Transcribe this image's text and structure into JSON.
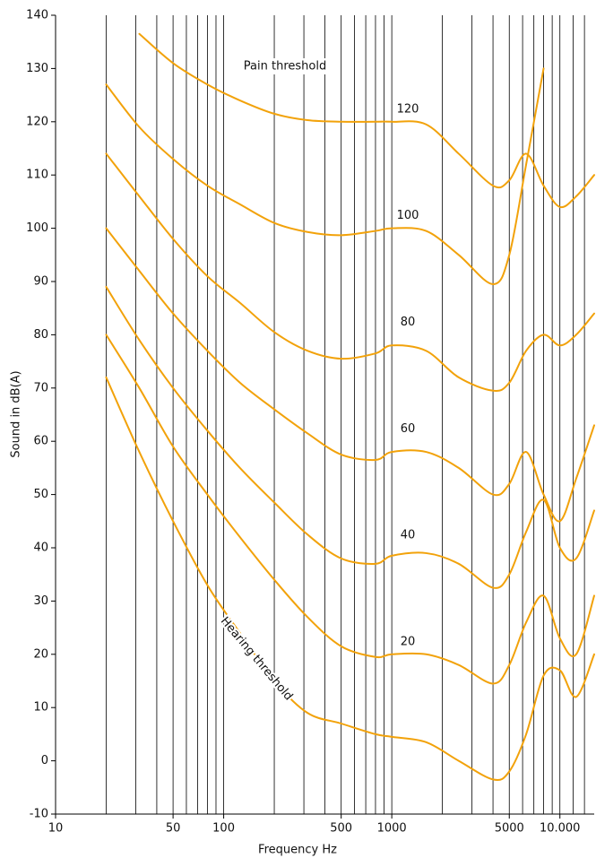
{
  "chart_data": {
    "type": "line",
    "xlabel": "Frequency Hz",
    "ylabel": "Sound in dB(A)",
    "xscale": "log",
    "xlim": [
      10,
      16000
    ],
    "ylim": [
      -10,
      140
    ],
    "xticks": [
      10,
      50,
      100,
      500,
      1000,
      5000,
      {
        "value": 10000,
        "label": "10.000"
      }
    ],
    "yticks": [
      -10,
      0,
      10,
      20,
      30,
      40,
      50,
      60,
      70,
      80,
      90,
      100,
      110,
      120,
      130,
      140
    ],
    "xgrid": [
      20,
      30,
      40,
      50,
      60,
      70,
      80,
      90,
      100,
      200,
      300,
      400,
      500,
      600,
      700,
      800,
      900,
      1000,
      2000,
      3000,
      4000,
      5000,
      6000,
      7000,
      8000,
      9000,
      10000,
      12000,
      14000
    ],
    "grid": true,
    "x": [
      20,
      31.5,
      50,
      80,
      125,
      200,
      315,
      500,
      800,
      1000,
      1600,
      2500,
      4000,
      5000,
      6300,
      8000,
      10000,
      12500,
      16000
    ],
    "series": [
      {
        "color": "#f2a20a",
        "values": [
          null,
          136.5,
          131,
          127,
          124,
          121.5,
          120.3,
          120,
          120,
          120,
          119.5,
          114,
          108,
          109,
          114,
          108,
          104,
          106,
          110
        ]
      },
      {
        "color": "#f2a20a",
        "values": [
          127,
          119,
          113,
          108,
          104.5,
          101,
          99.3,
          98.7,
          99.5,
          100,
          99.5,
          95,
          89.5,
          95,
          112,
          130,
          null,
          null,
          null
        ]
      },
      {
        "color": "#f2a20a",
        "values": [
          114,
          106,
          98,
          91,
          86,
          80.5,
          77,
          75.5,
          76.5,
          78,
          77,
          72,
          69.5,
          71,
          77,
          80,
          78,
          80,
          84
        ]
      },
      {
        "color": "#f2a20a",
        "values": [
          100,
          92,
          84,
          77,
          71,
          66,
          61.5,
          57.5,
          56.5,
          58,
          58,
          55,
          50,
          52,
          58,
          50,
          45,
          53,
          63
        ]
      },
      {
        "color": "#f2a20a",
        "values": [
          89,
          79,
          70,
          62,
          55,
          48.5,
          42.5,
          38,
          37,
          38.5,
          39,
          37,
          32.5,
          35,
          43,
          49,
          40,
          38,
          47
        ]
      },
      {
        "color": "#f2a20a",
        "values": [
          80,
          70,
          59,
          50,
          42,
          34,
          27,
          21.5,
          19.5,
          20,
          20,
          18,
          14.5,
          18,
          26,
          31,
          23,
          20,
          31
        ]
      },
      {
        "color": "#f2a20a",
        "values": [
          72,
          58,
          45,
          33,
          24,
          15,
          9,
          7,
          5,
          4.5,
          3.5,
          0,
          -3.5,
          -2,
          5,
          16,
          17,
          12,
          20
        ]
      }
    ],
    "annotations": {
      "pain": "Pain threshold",
      "hearing": "Hearing threshold",
      "contours": [
        "120",
        "100",
        "80",
        "60",
        "40",
        "20"
      ]
    }
  }
}
